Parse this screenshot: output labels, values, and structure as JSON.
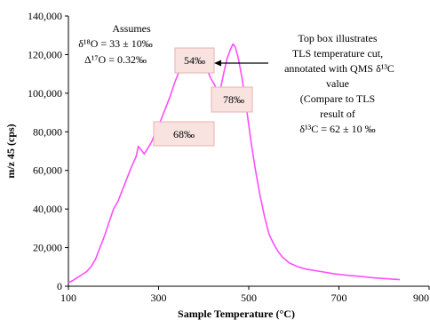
{
  "chart_data": {
    "type": "line",
    "xlabel": "Sample Temperature (°C)",
    "ylabel": "m/z 45 (cps)",
    "xlim": [
      100,
      900
    ],
    "ylim": [
      0,
      140000
    ],
    "xticks": [
      100,
      300,
      500,
      700,
      900
    ],
    "xtick_labels": [
      "100",
      "300",
      "500",
      "700",
      "900"
    ],
    "yticks": [
      0,
      20000,
      40000,
      60000,
      80000,
      100000,
      120000,
      140000
    ],
    "ytick_labels": [
      "0",
      "20,000",
      "40,000",
      "60,000",
      "80,000",
      "100,000",
      "120,000",
      "140,000"
    ],
    "grid": false,
    "series": [
      {
        "color": "#ff4dff",
        "points": [
          [
            100,
            1800
          ],
          [
            110,
            3000
          ],
          [
            120,
            4500
          ],
          [
            130,
            6000
          ],
          [
            140,
            7500
          ],
          [
            150,
            10000
          ],
          [
            160,
            14000
          ],
          [
            170,
            20000
          ],
          [
            180,
            26000
          ],
          [
            190,
            33000
          ],
          [
            200,
            40000
          ],
          [
            210,
            44000
          ],
          [
            220,
            50000
          ],
          [
            230,
            56000
          ],
          [
            240,
            62000
          ],
          [
            250,
            67000
          ],
          [
            255,
            72500
          ],
          [
            262,
            70500
          ],
          [
            268,
            68500
          ],
          [
            275,
            71000
          ],
          [
            285,
            75000
          ],
          [
            295,
            81000
          ],
          [
            305,
            86000
          ],
          [
            315,
            92000
          ],
          [
            325,
            98000
          ],
          [
            335,
            105000
          ],
          [
            345,
            111000
          ],
          [
            355,
            116000
          ],
          [
            365,
            119000
          ],
          [
            372,
            121000
          ],
          [
            378,
            118000
          ],
          [
            385,
            116000
          ],
          [
            395,
            118500
          ],
          [
            405,
            114000
          ],
          [
            415,
            108000
          ],
          [
            425,
            104000
          ],
          [
            432,
            100000
          ],
          [
            438,
            103000
          ],
          [
            445,
            111000
          ],
          [
            452,
            118000
          ],
          [
            460,
            123000
          ],
          [
            465,
            125500
          ],
          [
            470,
            124000
          ],
          [
            477,
            118000
          ],
          [
            485,
            108000
          ],
          [
            495,
            92000
          ],
          [
            505,
            75000
          ],
          [
            515,
            60000
          ],
          [
            525,
            47000
          ],
          [
            535,
            36000
          ],
          [
            545,
            27000
          ],
          [
            555,
            22000
          ],
          [
            565,
            18000
          ],
          [
            575,
            15000
          ],
          [
            590,
            12000
          ],
          [
            610,
            10000
          ],
          [
            630,
            8700
          ],
          [
            660,
            7600
          ],
          [
            690,
            6400
          ],
          [
            720,
            5600
          ],
          [
            750,
            5000
          ],
          [
            780,
            4300
          ],
          [
            810,
            3800
          ],
          [
            835,
            3400
          ]
        ]
      }
    ],
    "annotations": {
      "assumes": [
        "Assumes",
        "δ¹⁸O = 33 ± 10‰",
        "Δ¹⁷O = 0.32‰"
      ],
      "box_54": "54‰",
      "box_78": "78‰",
      "box_68": "68‰",
      "note": [
        "Top box illustrates",
        "TLS temperature cut,",
        "annotated with QMS δ¹³C",
        "value",
        "(Compare to TLS",
        "result of",
        "δ¹³C = 62 ± 10 ‰"
      ]
    },
    "colors": {
      "line": "#ff4dff",
      "box_fill": "#f8e3e1",
      "box_stroke": "#e8b0ac"
    }
  }
}
